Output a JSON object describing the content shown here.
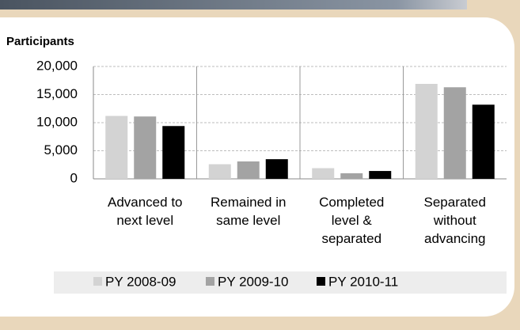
{
  "chart_data": {
    "type": "bar",
    "y_label": "Participants",
    "categories": [
      "Advanced to next level",
      "Remained in same level",
      "Completed level & separated",
      "Separated without advancing"
    ],
    "series": [
      {
        "name": "PY 2008-09",
        "color": "#d3d3d3",
        "values": [
          11200,
          2600,
          1900,
          16900
        ]
      },
      {
        "name": "PY 2009-10",
        "color": "#a3a3a3",
        "values": [
          11100,
          3100,
          1000,
          16300
        ]
      },
      {
        "name": "PY 2010-11",
        "color": "#000000",
        "values": [
          9400,
          3500,
          1400,
          13200
        ]
      }
    ],
    "ylim": [
      0,
      20000
    ],
    "yticks": [
      0,
      {
        "value": 5000,
        "label": "5,000"
      },
      {
        "value": 10000,
        "label": "10,000"
      },
      {
        "value": 15000,
        "label": "15,000"
      },
      {
        "value": 20000,
        "label": "20,000"
      }
    ],
    "grid": true,
    "legend": "bottom"
  }
}
